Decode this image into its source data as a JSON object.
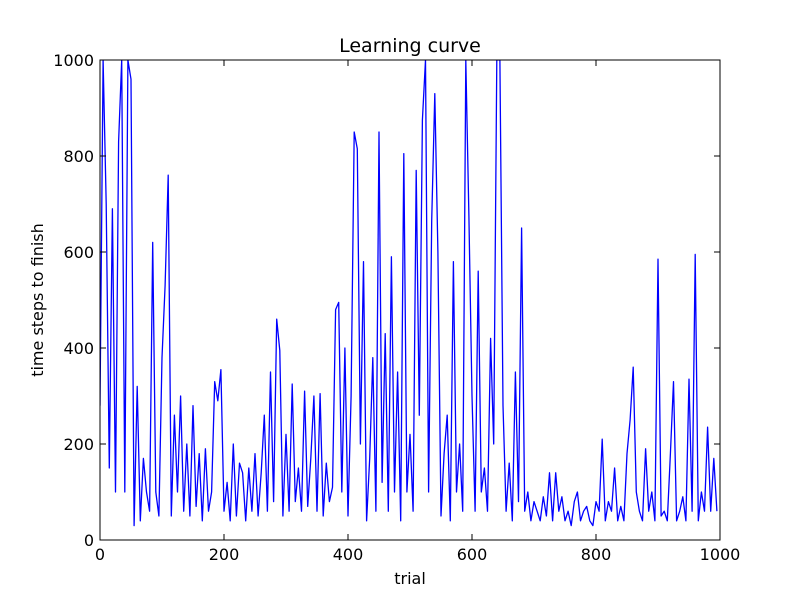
{
  "chart_data": {
    "type": "line",
    "title": "Learning curve",
    "x_label": "trial",
    "y_label": "time steps to finish",
    "color": "#0000ff",
    "x": [
      0,
      5,
      10,
      15,
      20,
      25,
      30,
      35,
      40,
      45,
      50,
      55,
      60,
      65,
      70,
      75,
      80,
      85,
      90,
      95,
      100,
      105,
      110,
      115,
      120,
      125,
      130,
      135,
      140,
      145,
      150,
      155,
      160,
      165,
      170,
      175,
      180,
      185,
      190,
      195,
      200,
      205,
      210,
      215,
      220,
      225,
      230,
      235,
      240,
      245,
      250,
      255,
      260,
      265,
      270,
      275,
      280,
      285,
      290,
      295,
      300,
      305,
      310,
      315,
      320,
      325,
      330,
      335,
      340,
      345,
      350,
      355,
      360,
      365,
      370,
      375,
      380,
      385,
      390,
      395,
      400,
      405,
      410,
      415,
      420,
      425,
      430,
      435,
      440,
      445,
      450,
      455,
      460,
      465,
      470,
      475,
      480,
      485,
      490,
      495,
      500,
      505,
      510,
      515,
      520,
      525,
      530,
      535,
      540,
      545,
      550,
      555,
      560,
      565,
      570,
      575,
      580,
      585,
      590,
      595,
      600,
      605,
      610,
      615,
      620,
      625,
      630,
      635,
      640,
      645,
      650,
      655,
      660,
      665,
      670,
      675,
      680,
      685,
      690,
      695,
      700,
      705,
      710,
      715,
      720,
      725,
      730,
      735,
      740,
      745,
      750,
      755,
      760,
      765,
      770,
      775,
      780,
      785,
      790,
      795,
      800,
      805,
      810,
      815,
      820,
      825,
      830,
      835,
      840,
      845,
      850,
      855,
      860,
      865,
      870,
      875,
      880,
      885,
      890,
      895,
      900,
      905,
      910,
      915,
      920,
      925,
      930,
      935,
      940,
      945,
      950,
      955,
      960,
      965,
      970,
      975,
      980,
      985,
      990,
      995
    ],
    "values": [
      280,
      1000,
      700,
      150,
      690,
      100,
      830,
      1000,
      100,
      1000,
      960,
      30,
      320,
      40,
      170,
      100,
      60,
      620,
      100,
      50,
      380,
      530,
      760,
      50,
      260,
      100,
      300,
      60,
      200,
      50,
      280,
      70,
      180,
      40,
      190,
      60,
      100,
      330,
      290,
      355,
      60,
      120,
      40,
      200,
      50,
      160,
      140,
      40,
      150,
      60,
      180,
      50,
      140,
      260,
      60,
      350,
      80,
      460,
      395,
      50,
      220,
      60,
      325,
      80,
      150,
      60,
      310,
      70,
      170,
      300,
      60,
      305,
      50,
      160,
      80,
      110,
      480,
      495,
      100,
      400,
      50,
      300,
      850,
      815,
      200,
      580,
      40,
      170,
      380,
      60,
      850,
      120,
      430,
      60,
      590,
      100,
      350,
      40,
      805,
      100,
      220,
      60,
      770,
      260,
      875,
      1000,
      100,
      665,
      930,
      600,
      50,
      180,
      260,
      40,
      580,
      100,
      200,
      60,
      1000,
      675,
      300,
      60,
      560,
      100,
      150,
      60,
      420,
      200,
      1000,
      1000,
      280,
      60,
      160,
      40,
      350,
      80,
      650,
      60,
      100,
      40,
      80,
      60,
      40,
      90,
      50,
      140,
      40,
      140,
      60,
      90,
      40,
      60,
      30,
      80,
      100,
      40,
      60,
      70,
      40,
      30,
      80,
      60,
      210,
      40,
      80,
      60,
      150,
      40,
      70,
      40,
      180,
      250,
      360,
      100,
      60,
      40,
      190,
      60,
      100,
      40,
      585,
      50,
      60,
      40,
      180,
      330,
      40,
      60,
      90,
      40,
      335,
      60,
      595,
      40,
      100,
      60,
      235,
      60,
      170,
      60
    ],
    "xlim": [
      0,
      1000
    ],
    "ylim": [
      0,
      1000
    ],
    "xticks": [
      0,
      200,
      400,
      600,
      800,
      1000
    ],
    "yticks": [
      0,
      200,
      400,
      600,
      800,
      1000
    ]
  }
}
